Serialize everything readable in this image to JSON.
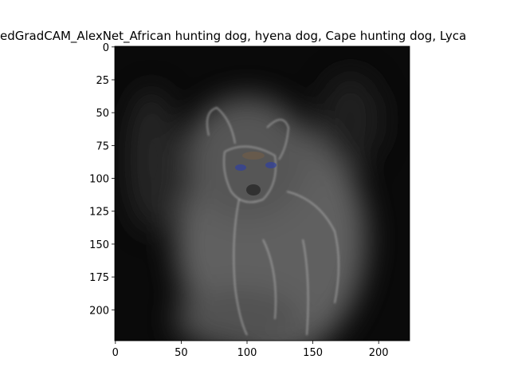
{
  "chart_data": {
    "type": "image",
    "title": "edGradCAM_AlexNet_African hunting dog, hyena dog, Cape hunting dog, Lyca",
    "xlim": [
      -0.5,
      223.5
    ],
    "ylim": [
      223.5,
      -0.5
    ],
    "xticks": [
      0,
      50,
      100,
      150,
      200
    ],
    "yticks": [
      0,
      25,
      50,
      75,
      100,
      125,
      150,
      175,
      200
    ]
  }
}
